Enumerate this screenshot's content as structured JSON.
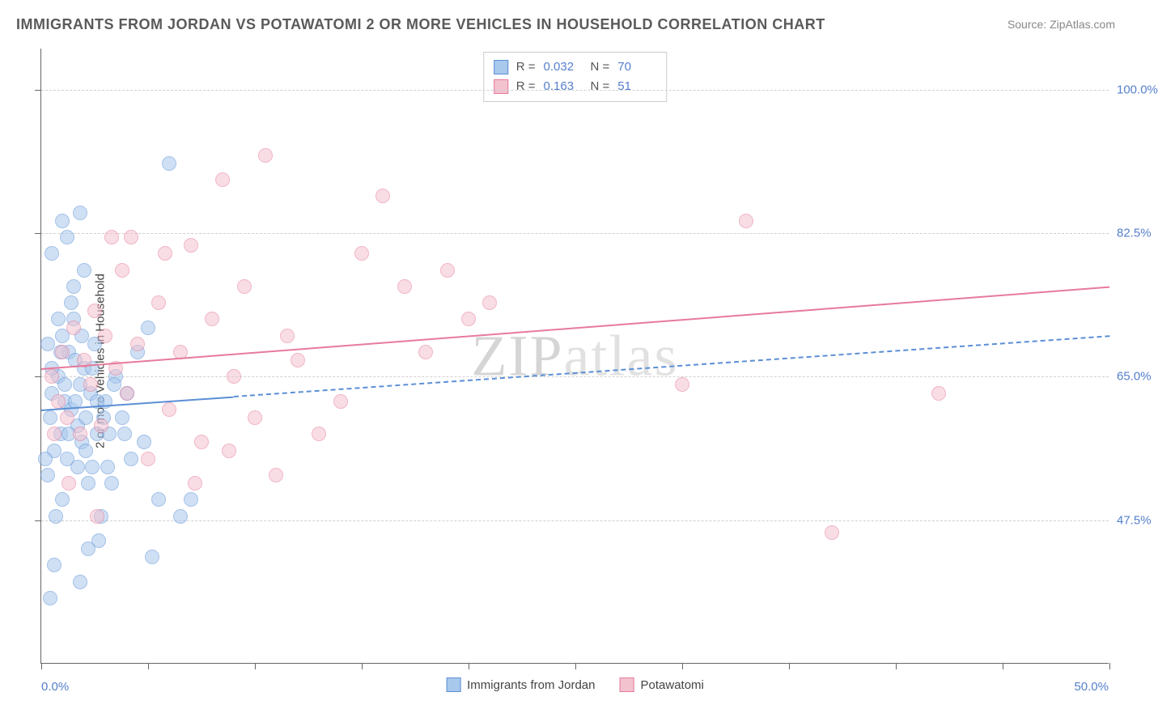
{
  "title": "IMMIGRANTS FROM JORDAN VS POTAWATOMI 2 OR MORE VEHICLES IN HOUSEHOLD CORRELATION CHART",
  "source": "Source: ZipAtlas.com",
  "ylabel": "2 or more Vehicles in Household",
  "watermark_a": "ZIP",
  "watermark_b": "atlas",
  "chart": {
    "type": "scatter",
    "background_color": "#ffffff",
    "grid_color": "#d0d0d0",
    "axis_color": "#666666",
    "xlim": [
      0,
      50
    ],
    "ylim": [
      30,
      105
    ],
    "x_ticks": [
      0,
      5,
      10,
      15,
      20,
      25,
      30,
      35,
      40,
      45,
      50
    ],
    "y_gridlines": [
      47.5,
      65.0,
      82.5,
      100.0
    ],
    "x_labels": {
      "min": "0.0%",
      "max": "50.0%"
    },
    "y_labels": [
      "47.5%",
      "65.0%",
      "82.5%",
      "100.0%"
    ],
    "label_color": "#557fcd",
    "label_fontsize": 15,
    "title_fontsize": 18,
    "title_color": "#5a5a5a",
    "point_radius": 9,
    "point_opacity": 0.55
  },
  "series": [
    {
      "name": "Immigrants from Jordan",
      "fill": "#a8c8ec",
      "stroke": "#5b8fd6",
      "R": "0.032",
      "N": "70",
      "trend": {
        "x0": 0,
        "y0": 61,
        "x1": 50,
        "y1": 70,
        "solid_until_x": 9,
        "width": 2.5
      },
      "points": [
        [
          0.3,
          53
        ],
        [
          0.4,
          60
        ],
        [
          0.5,
          63
        ],
        [
          0.6,
          56
        ],
        [
          0.7,
          48
        ],
        [
          0.8,
          65
        ],
        [
          0.9,
          58
        ],
        [
          1.0,
          70
        ],
        [
          1.1,
          62
        ],
        [
          1.2,
          55
        ],
        [
          1.3,
          68
        ],
        [
          1.4,
          61
        ],
        [
          1.5,
          72
        ],
        [
          1.6,
          67
        ],
        [
          1.7,
          59
        ],
        [
          1.8,
          64
        ],
        [
          1.9,
          57
        ],
        [
          2.0,
          66
        ],
        [
          2.1,
          60
        ],
        [
          2.2,
          52
        ],
        [
          2.3,
          63
        ],
        [
          2.4,
          54
        ],
        [
          2.5,
          69
        ],
        [
          2.6,
          58
        ],
        [
          2.7,
          45
        ],
        [
          0.5,
          80
        ],
        [
          1.0,
          84
        ],
        [
          1.5,
          76
        ],
        [
          2.0,
          78
        ],
        [
          1.2,
          82
        ],
        [
          3.0,
          62
        ],
        [
          3.2,
          58
        ],
        [
          3.5,
          65
        ],
        [
          3.8,
          60
        ],
        [
          4.0,
          63
        ],
        [
          4.2,
          55
        ],
        [
          4.5,
          68
        ],
        [
          4.8,
          57
        ],
        [
          5.0,
          71
        ],
        [
          5.5,
          50
        ],
        [
          6.0,
          91
        ],
        [
          2.8,
          48
        ],
        [
          3.3,
          52
        ],
        [
          1.8,
          85
        ],
        [
          1.0,
          50
        ],
        [
          0.6,
          42
        ],
        [
          2.2,
          44
        ],
        [
          0.8,
          72
        ],
        [
          1.4,
          74
        ],
        [
          1.9,
          70
        ],
        [
          0.5,
          66
        ],
        [
          1.1,
          64
        ],
        [
          1.6,
          62
        ],
        [
          2.4,
          66
        ],
        [
          2.9,
          60
        ],
        [
          3.4,
          64
        ],
        [
          3.9,
          58
        ],
        [
          0.3,
          69
        ],
        [
          0.9,
          68
        ],
        [
          1.3,
          58
        ],
        [
          1.7,
          54
        ],
        [
          2.1,
          56
        ],
        [
          2.6,
          62
        ],
        [
          3.1,
          54
        ],
        [
          6.5,
          48
        ],
        [
          7.0,
          50
        ],
        [
          5.2,
          43
        ],
        [
          0.4,
          38
        ],
        [
          1.8,
          40
        ],
        [
          0.2,
          55
        ]
      ]
    },
    {
      "name": "Potawatomi",
      "fill": "#f3c2cf",
      "stroke": "#e77a9b",
      "R": "0.163",
      "N": "51",
      "trend": {
        "x0": 0,
        "y0": 66,
        "x1": 50,
        "y1": 76,
        "solid_until_x": 50,
        "width": 2.5
      },
      "points": [
        [
          0.5,
          65
        ],
        [
          0.8,
          62
        ],
        [
          1.0,
          68
        ],
        [
          1.2,
          60
        ],
        [
          1.5,
          71
        ],
        [
          1.8,
          58
        ],
        [
          2.0,
          67
        ],
        [
          2.3,
          64
        ],
        [
          2.5,
          73
        ],
        [
          2.8,
          59
        ],
        [
          3.0,
          70
        ],
        [
          3.3,
          82
        ],
        [
          3.5,
          66
        ],
        [
          3.8,
          78
        ],
        [
          4.0,
          63
        ],
        [
          4.5,
          69
        ],
        [
          5.0,
          55
        ],
        [
          5.5,
          74
        ],
        [
          6.0,
          61
        ],
        [
          6.5,
          68
        ],
        [
          7.0,
          81
        ],
        [
          7.5,
          57
        ],
        [
          8.0,
          72
        ],
        [
          8.5,
          89
        ],
        [
          9.0,
          65
        ],
        [
          9.5,
          76
        ],
        [
          10.0,
          60
        ],
        [
          10.5,
          92
        ],
        [
          11.0,
          53
        ],
        [
          11.5,
          70
        ],
        [
          12.0,
          67
        ],
        [
          15.0,
          80
        ],
        [
          16.0,
          87
        ],
        [
          17.0,
          76
        ],
        [
          18.0,
          68
        ],
        [
          19.0,
          78
        ],
        [
          20.0,
          72
        ],
        [
          21.0,
          74
        ],
        [
          13.0,
          58
        ],
        [
          14.0,
          62
        ],
        [
          33.0,
          84
        ],
        [
          30.0,
          64
        ],
        [
          37.0,
          46
        ],
        [
          42.0,
          63
        ],
        [
          4.2,
          82
        ],
        [
          5.8,
          80
        ],
        [
          7.2,
          52
        ],
        [
          8.8,
          56
        ],
        [
          2.6,
          48
        ],
        [
          1.3,
          52
        ],
        [
          0.6,
          58
        ]
      ]
    }
  ],
  "stats_legend": {
    "R_label": "R =",
    "N_label": "N ="
  },
  "bottom_legend_items": [
    "Immigrants from Jordan",
    "Potawatomi"
  ]
}
